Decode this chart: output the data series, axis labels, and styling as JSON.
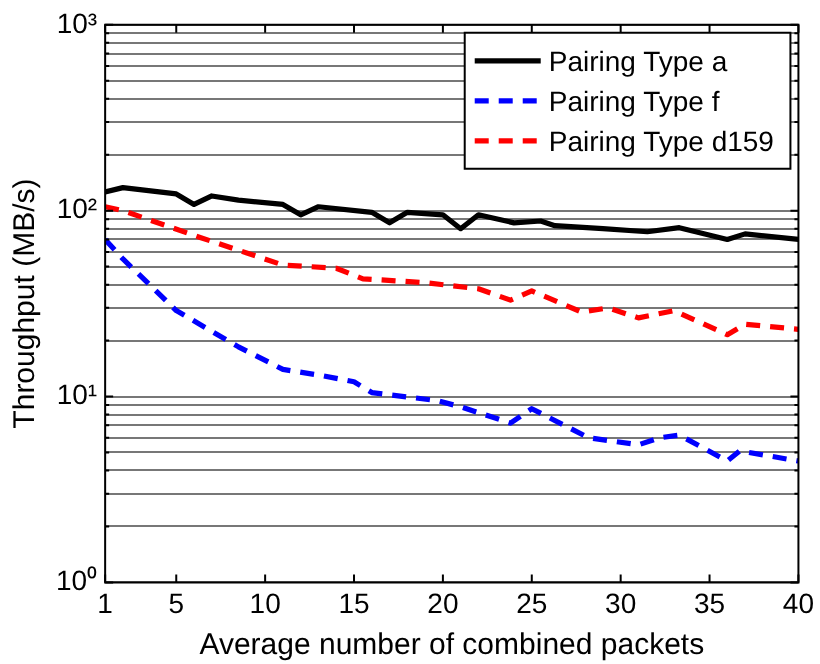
{
  "chart_data": {
    "type": "line",
    "xlabel": "Average number of combined packets",
    "ylabel": "Throughput (MB/s)",
    "log": "y",
    "grid": "y",
    "legend": "top right",
    "marker": "none",
    "xlim": [
      1,
      40
    ],
    "xticks": [
      1,
      5,
      10,
      15,
      20,
      25,
      30,
      35,
      40
    ],
    "ylim": [
      1,
      1000
    ],
    "yticks": [
      {
        "value": 1,
        "label": "10⁰"
      },
      {
        "value": 2,
        "label": null
      },
      {
        "value": 3,
        "label": null
      },
      {
        "value": 4,
        "label": null
      },
      {
        "value": 5,
        "label": null
      },
      {
        "value": 6,
        "label": null
      },
      {
        "value": 7,
        "label": null
      },
      {
        "value": 8,
        "label": null
      },
      {
        "value": 9,
        "label": null
      },
      {
        "value": 10,
        "label": "10¹"
      },
      {
        "value": 20,
        "label": null
      },
      {
        "value": 30,
        "label": null
      },
      {
        "value": 40,
        "label": null
      },
      {
        "value": 50,
        "label": null
      },
      {
        "value": 60,
        "label": null
      },
      {
        "value": 70,
        "label": null
      },
      {
        "value": 80,
        "label": null
      },
      {
        "value": 90,
        "label": null
      },
      {
        "value": 100,
        "label": "10²"
      },
      {
        "value": 200,
        "label": null
      },
      {
        "value": 300,
        "label": null
      },
      {
        "value": 400,
        "label": null
      },
      {
        "value": 500,
        "label": null
      },
      {
        "value": 600,
        "label": null
      },
      {
        "value": 700,
        "label": null
      },
      {
        "value": 800,
        "label": null
      },
      {
        "value": 900,
        "label": null
      },
      {
        "value": 1000,
        "label": "10³"
      }
    ],
    "series": [
      {
        "name": "Pairing Type a",
        "color": "#000000",
        "line_style": "solid",
        "x": [
          1,
          2,
          5,
          6,
          7,
          8.5,
          11,
          12,
          13,
          16,
          17,
          18,
          20,
          21,
          22,
          24,
          25.5,
          26.3,
          29,
          31.5,
          33.3,
          36,
          37,
          40
        ],
        "values": [
          126,
          133,
          123,
          108,
          120,
          114,
          108,
          95,
          105,
          98,
          86,
          98,
          95,
          80,
          95,
          86,
          88,
          83,
          80,
          77,
          81,
          70,
          75,
          70
        ]
      },
      {
        "name": "Pairing Type f",
        "color": "#0000ff",
        "line_style": "dashed",
        "x": [
          1,
          2,
          5,
          8.5,
          11,
          13.3,
          15,
          16,
          19.7,
          21,
          23.8,
          25,
          28.2,
          31,
          32.2,
          33.3,
          36,
          36.7,
          40
        ],
        "values": [
          70,
          55,
          29,
          18.5,
          14,
          12.9,
          12,
          10.5,
          9.5,
          8.8,
          7.2,
          8.6,
          6,
          5.5,
          6,
          6.2,
          4.5,
          5.1,
          4.5
        ]
      },
      {
        "name": "Pairing Type d159",
        "color": "#ff0000",
        "line_style": "dashed",
        "x": [
          1,
          2,
          6.3,
          11,
          14,
          15.5,
          19,
          22,
          23.8,
          25,
          27.8,
          29.3,
          31,
          33,
          36,
          37,
          40
        ],
        "values": [
          105,
          100,
          72,
          51,
          49,
          43,
          41,
          38,
          33,
          37,
          28.5,
          30,
          26.5,
          29,
          21.5,
          24.5,
          23
        ]
      }
    ]
  }
}
